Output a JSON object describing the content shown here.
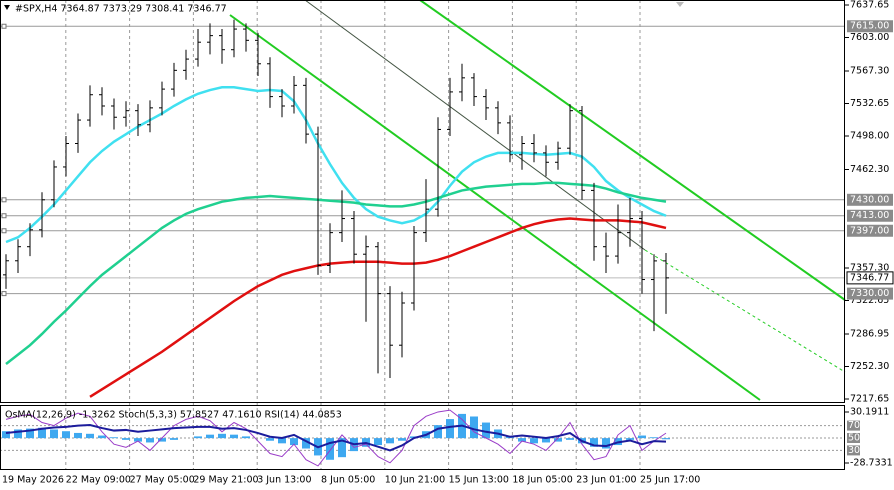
{
  "chart_data": {
    "type": "ohlc",
    "title": "#SPX,H4  7364.87 7373.29 7308.41 7346.77",
    "candle_color": "#000000",
    "candles": [
      [
        7350,
        7372,
        7335,
        7365
      ],
      [
        7365,
        7388,
        7352,
        7380
      ],
      [
        7380,
        7405,
        7370,
        7398
      ],
      [
        7398,
        7438,
        7390,
        7430
      ],
      [
        7430,
        7472,
        7422,
        7465
      ],
      [
        7465,
        7498,
        7455,
        7490
      ],
      [
        7490,
        7522,
        7480,
        7515
      ],
      [
        7515,
        7552,
        7508,
        7542
      ],
      [
        7542,
        7550,
        7520,
        7530
      ],
      [
        7530,
        7538,
        7505,
        7518
      ],
      [
        7518,
        7535,
        7508,
        7525
      ],
      [
        7525,
        7532,
        7498,
        7510
      ],
      [
        7510,
        7536,
        7502,
        7528
      ],
      [
        7528,
        7556,
        7520,
        7548
      ],
      [
        7548,
        7576,
        7540,
        7568
      ],
      [
        7568,
        7590,
        7558,
        7580
      ],
      [
        7580,
        7612,
        7572,
        7598
      ],
      [
        7598,
        7618,
        7585,
        7605
      ],
      [
        7605,
        7612,
        7575,
        7590
      ],
      [
        7590,
        7622,
        7582,
        7612
      ],
      [
        7612,
        7618,
        7588,
        7600
      ],
      [
        7600,
        7608,
        7562,
        7575
      ],
      [
        7575,
        7582,
        7528,
        7540
      ],
      [
        7540,
        7548,
        7518,
        7530
      ],
      [
        7530,
        7562,
        7522,
        7552
      ],
      [
        7552,
        7560,
        7490,
        7500
      ],
      [
        7500,
        7508,
        7350,
        7360
      ],
      [
        7360,
        7405,
        7352,
        7395
      ],
      [
        7395,
        7440,
        7385,
        7410
      ],
      [
        7410,
        7418,
        7362,
        7372
      ],
      [
        7372,
        7392,
        7300,
        7380
      ],
      [
        7380,
        7385,
        7245,
        7330
      ],
      [
        7330,
        7338,
        7240,
        7275
      ],
      [
        7275,
        7332,
        7262,
        7320
      ],
      [
        7320,
        7402,
        7312,
        7395
      ],
      [
        7395,
        7452,
        7385,
        7420
      ],
      [
        7420,
        7518,
        7412,
        7505
      ],
      [
        7505,
        7560,
        7498,
        7545
      ],
      [
        7545,
        7575,
        7535,
        7560
      ],
      [
        7560,
        7565,
        7530,
        7540
      ],
      [
        7540,
        7548,
        7515,
        7528
      ],
      [
        7528,
        7535,
        7500,
        7512
      ],
      [
        7512,
        7520,
        7470,
        7478
      ],
      [
        7478,
        7498,
        7462,
        7490
      ],
      [
        7490,
        7500,
        7470,
        7480
      ],
      [
        7480,
        7488,
        7455,
        7470
      ],
      [
        7470,
        7492,
        7462,
        7485
      ],
      [
        7485,
        7532,
        7478,
        7525
      ],
      [
        7525,
        7530,
        7430,
        7440
      ],
      [
        7440,
        7448,
        7365,
        7380
      ],
      [
        7380,
        7395,
        7352,
        7370
      ],
      [
        7370,
        7425,
        7362,
        7395
      ],
      [
        7395,
        7432,
        7380,
        7410
      ],
      [
        7410,
        7418,
        7330,
        7345
      ],
      [
        7345,
        7372,
        7290,
        7364.87
      ],
      [
        7364.87,
        7373.29,
        7308.41,
        7346.77
      ]
    ],
    "series": [
      {
        "color": "#40e0f0",
        "values": [
          7385,
          7390,
          7400,
          7412,
          7425,
          7440,
          7455,
          7470,
          7482,
          7492,
          7500,
          7508,
          7515,
          7522,
          7530,
          7537,
          7543,
          7547,
          7550,
          7550,
          7548,
          7546,
          7547,
          7546,
          7535,
          7515,
          7490,
          7468,
          7448,
          7432,
          7420,
          7412,
          7408,
          7405,
          7408,
          7415,
          7428,
          7445,
          7460,
          7470,
          7476,
          7480,
          7480,
          7480,
          7479,
          7478,
          7479,
          7480,
          7476,
          7465,
          7450,
          7440,
          7432,
          7425,
          7418,
          7413
        ]
      },
      {
        "color": "#20d090",
        "values": [
          7255,
          7265,
          7275,
          7287,
          7300,
          7312,
          7325,
          7338,
          7350,
          7360,
          7370,
          7380,
          7390,
          7400,
          7408,
          7415,
          7420,
          7424,
          7428,
          7430,
          7432,
          7433,
          7434,
          7433,
          7432,
          7431,
          7430,
          7429,
          7428,
          7427,
          7425,
          7424,
          7423,
          7423,
          7425,
          7428,
          7432,
          7436,
          7440,
          7442,
          7444,
          7445,
          7446,
          7447,
          7447,
          7448,
          7448,
          7447,
          7446,
          7445,
          7442,
          7438,
          7435,
          7432,
          7430,
          7428
        ]
      },
      {
        "color": "#e01010",
        "values": [
          null,
          null,
          null,
          null,
          null,
          null,
          null,
          7220,
          7228,
          7236,
          7244,
          7252,
          7260,
          7268,
          7277,
          7286,
          7295,
          7304,
          7313,
          7322,
          7330,
          7338,
          7344,
          7350,
          7354,
          7357,
          7360,
          7362,
          7363,
          7364,
          7364,
          7364,
          7363,
          7362,
          7362,
          7363,
          7366,
          7370,
          7375,
          7380,
          7385,
          7390,
          7395,
          7400,
          7404,
          7407,
          7409,
          7410,
          7409,
          7408,
          7408,
          7408,
          7407,
          7406,
          7403,
          7400
        ]
      }
    ],
    "ylim": [
      7217.65,
      7637.65
    ],
    "yticks": [
      7637.65,
      {
        "value": 7603,
        "label": "7603.00"
      },
      {
        "value": 7567.3,
        "label": "7567.30"
      },
      7532.65,
      {
        "value": 7498,
        "label": "7498.00"
      },
      {
        "value": 7462.3,
        "label": "7462.30"
      },
      {
        "value": 7357.3,
        "label": "7357.30"
      },
      7322.65,
      7286.95,
      {
        "value": 7252.3,
        "label": "7252.30"
      },
      7217.65
    ],
    "levels": [
      {
        "value": 7615,
        "label": "7615.00"
      },
      {
        "value": 7430,
        "label": "7430.00"
      },
      {
        "value": 7413,
        "label": "7413.00"
      },
      {
        "value": 7397,
        "label": "7397.00"
      },
      {
        "value": 7330,
        "label": "7330.00"
      }
    ],
    "current_price": 7346.77,
    "x_labels": [
      "19 May 2026",
      "22 May 09:00",
      "27 May 05:00",
      "29 May 21:00",
      "3 Jun 13:00",
      "8 Jun 05:00",
      "10 Jun 21:00",
      "15 Jun 13:00",
      "18 Jun 05:00",
      "23 Jun 01:00",
      "25 Jun 17:00"
    ],
    "grid": true,
    "indicator": {
      "label": "OsMA(12,26,9) -1.3262  Stoch(5,3,3) 57.8527 47.1610  RSI(14) 44.0853",
      "ylim": [
        -28.7331,
        30.1911
      ],
      "yticks": [
        30.1911,
        -28.7331
      ],
      "y2lim": [
        0,
        100
      ],
      "y2ticks": [
        70,
        50,
        30
      ],
      "series": [
        {
          "type": "bar",
          "color": "#3ea8f0",
          "values": [
            8,
            10,
            11,
            12,
            10,
            8,
            6,
            5,
            3,
            1,
            -2,
            -4,
            -5,
            -4,
            -2,
            0,
            2,
            4,
            5,
            4,
            2,
            0,
            -3,
            -6,
            -8,
            -12,
            -20,
            -25,
            -22,
            -15,
            -10,
            -8,
            -6,
            -3,
            2,
            8,
            15,
            22,
            28,
            25,
            18,
            10,
            2,
            -4,
            -6,
            -5,
            -4,
            -2,
            -6,
            -10,
            -12,
            -8,
            -2,
            3,
            1,
            -1.3262
          ]
        },
        {
          "type": "line",
          "axis": "y2",
          "color": "#9a3cc8",
          "values": [
            80,
            85,
            88,
            75,
            70,
            82,
            90,
            85,
            60,
            40,
            35,
            45,
            30,
            50,
            70,
            80,
            85,
            78,
            60,
            75,
            65,
            45,
            25,
            20,
            40,
            15,
            5,
            30,
            55,
            35,
            40,
            20,
            10,
            30,
            70,
            85,
            92,
            95,
            80,
            60,
            50,
            40,
            25,
            45,
            40,
            30,
            50,
            75,
            40,
            15,
            20,
            55,
            70,
            30,
            45,
            57.8527
          ]
        },
        {
          "type": "line",
          "axis": "y2",
          "color": "#1c1c9c",
          "values": [
            58,
            60,
            62,
            65,
            67,
            68,
            70,
            71,
            66,
            62,
            63,
            60,
            62,
            64,
            66,
            67,
            68,
            68,
            65,
            66,
            63,
            58,
            52,
            50,
            55,
            45,
            35,
            42,
            46,
            40,
            42,
            36,
            30,
            38,
            50,
            55,
            65,
            68,
            70,
            64,
            60,
            57,
            52,
            54,
            52,
            50,
            53,
            58,
            45,
            38,
            37,
            43,
            46,
            40,
            45,
            44.0853
          ]
        }
      ]
    }
  }
}
